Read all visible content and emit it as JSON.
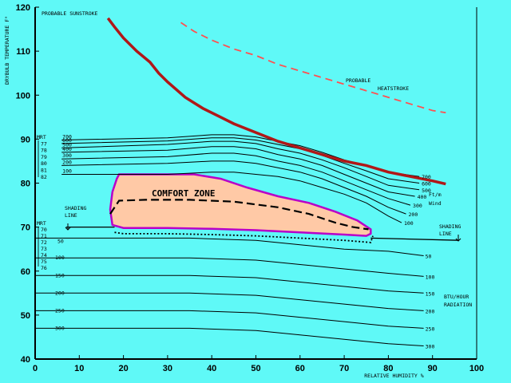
{
  "chart_data": {
    "type": "line",
    "title": "",
    "xlabel": "RELATIVE HUMIDITY %",
    "ylabel": "DRYBULB TEMPERATURE F°",
    "xlim": [
      0,
      100
    ],
    "ylim": [
      40,
      120
    ],
    "x_ticks": [
      0,
      10,
      20,
      30,
      40,
      50,
      60,
      70,
      80,
      90,
      100
    ],
    "y_ticks": [
      40,
      50,
      60,
      70,
      80,
      90,
      100,
      110,
      120
    ],
    "colors": {
      "background": "#5ff9f7",
      "sunstroke": "#b01818",
      "heatstroke": "#ff5050",
      "comfort_fill": "#ffc9a6",
      "comfort_edge": "#b800c8"
    },
    "series": [
      {
        "name": "PROBABLE SUNSTROKE",
        "style": "solid-red",
        "points": [
          [
            16.5,
            117.5
          ],
          [
            18,
            115.5
          ],
          [
            20,
            113
          ],
          [
            23,
            110
          ],
          [
            26,
            107.5
          ],
          [
            28,
            105
          ],
          [
            30,
            103
          ],
          [
            34,
            99.5
          ],
          [
            38,
            97
          ],
          [
            42,
            95
          ],
          [
            45,
            93.5
          ],
          [
            50,
            91.5
          ],
          [
            55,
            89.5
          ],
          [
            60,
            88
          ],
          [
            65,
            86.5
          ],
          [
            70,
            85
          ],
          [
            75,
            84
          ],
          [
            80,
            82.5
          ],
          [
            85,
            81.5
          ],
          [
            90,
            80.5
          ],
          [
            93,
            79.8
          ]
        ]
      },
      {
        "name": "PROBABLE HEATSTROKE",
        "style": "dashed-red",
        "points": [
          [
            33,
            116.5
          ],
          [
            36,
            114.5
          ],
          [
            40,
            112.5
          ],
          [
            45,
            110.5
          ],
          [
            50,
            109
          ],
          [
            55,
            107
          ],
          [
            60,
            105.5
          ],
          [
            65,
            104
          ],
          [
            70,
            102.5
          ],
          [
            75,
            101
          ],
          [
            80,
            99.5
          ],
          [
            85,
            98
          ],
          [
            90,
            96.5
          ],
          [
            93,
            96
          ]
        ]
      }
    ],
    "wind_curves": [
      {
        "label": "100",
        "points": [
          [
            6,
            82
          ],
          [
            30,
            82
          ],
          [
            40,
            82.5
          ],
          [
            45,
            82.5
          ],
          [
            50,
            82
          ],
          [
            55,
            81.5
          ],
          [
            60,
            80.5
          ],
          [
            65,
            79
          ],
          [
            70,
            77.5
          ],
          [
            75,
            75.5
          ],
          [
            80,
            72.5
          ],
          [
            83,
            71
          ]
        ]
      },
      {
        "label": "200",
        "points": [
          [
            6,
            84
          ],
          [
            30,
            84.5
          ],
          [
            40,
            85
          ],
          [
            45,
            85
          ],
          [
            50,
            84.5
          ],
          [
            55,
            83.5
          ],
          [
            60,
            82.5
          ],
          [
            65,
            81
          ],
          [
            70,
            79
          ],
          [
            75,
            77
          ],
          [
            80,
            74.5
          ],
          [
            84,
            73
          ]
        ]
      },
      {
        "label": "300",
        "points": [
          [
            6,
            85.5
          ],
          [
            30,
            86
          ],
          [
            40,
            86.8
          ],
          [
            45,
            86.8
          ],
          [
            50,
            86.2
          ],
          [
            55,
            85
          ],
          [
            60,
            84
          ],
          [
            65,
            82.5
          ],
          [
            70,
            80.5
          ],
          [
            75,
            78.5
          ],
          [
            80,
            76.5
          ],
          [
            85,
            75
          ]
        ]
      },
      {
        "label": "400",
        "points": [
          [
            6,
            87
          ],
          [
            30,
            87.5
          ],
          [
            40,
            88.3
          ],
          [
            45,
            88.3
          ],
          [
            50,
            87.8
          ],
          [
            55,
            86.5
          ],
          [
            60,
            85.5
          ],
          [
            65,
            84
          ],
          [
            70,
            82
          ],
          [
            75,
            80
          ],
          [
            80,
            78
          ],
          [
            86,
            77
          ]
        ]
      },
      {
        "label": "500",
        "points": [
          [
            6,
            88
          ],
          [
            30,
            88.8
          ],
          [
            40,
            89.5
          ],
          [
            45,
            89.5
          ],
          [
            50,
            89
          ],
          [
            55,
            87.8
          ],
          [
            60,
            86.8
          ],
          [
            65,
            85.3
          ],
          [
            70,
            83.5
          ],
          [
            75,
            81.5
          ],
          [
            80,
            79.5
          ],
          [
            87,
            78.5
          ]
        ]
      },
      {
        "label": "600",
        "points": [
          [
            6,
            89
          ],
          [
            30,
            89.6
          ],
          [
            40,
            90.3
          ],
          [
            45,
            90.3
          ],
          [
            50,
            89.8
          ],
          [
            55,
            88.8
          ],
          [
            60,
            87.8
          ],
          [
            65,
            86.3
          ],
          [
            70,
            84.5
          ],
          [
            75,
            82.8
          ],
          [
            80,
            81
          ],
          [
            87,
            80
          ]
        ]
      },
      {
        "label": "700",
        "points": [
          [
            6,
            89.8
          ],
          [
            30,
            90.3
          ],
          [
            40,
            91
          ],
          [
            45,
            91
          ],
          [
            50,
            90.5
          ],
          [
            55,
            89.5
          ],
          [
            60,
            88.5
          ],
          [
            65,
            87
          ],
          [
            70,
            85.3
          ],
          [
            75,
            84
          ],
          [
            80,
            82.5
          ],
          [
            87,
            81.5
          ]
        ]
      }
    ],
    "wind_bracket_labels": [
      "MRT",
      "77",
      "78",
      "79",
      "80",
      "81",
      "82"
    ],
    "wind_units": "Ft/m",
    "wind_label": "Wind",
    "radiation_curves": [
      {
        "label": "50",
        "points": [
          [
            0,
            67.5
          ],
          [
            35,
            67.5
          ],
          [
            50,
            67
          ],
          [
            60,
            66
          ],
          [
            70,
            65
          ],
          [
            80,
            64.5
          ],
          [
            88,
            63.5
          ]
        ]
      },
      {
        "label": "100",
        "points": [
          [
            0,
            63
          ],
          [
            35,
            63
          ],
          [
            50,
            62.5
          ],
          [
            60,
            61.5
          ],
          [
            70,
            60.5
          ],
          [
            80,
            59.5
          ],
          [
            88,
            58.8
          ]
        ]
      },
      {
        "label": "150",
        "points": [
          [
            0,
            59
          ],
          [
            35,
            59
          ],
          [
            50,
            58.5
          ],
          [
            60,
            57.5
          ],
          [
            70,
            56.5
          ],
          [
            80,
            55.5
          ],
          [
            88,
            55
          ]
        ]
      },
      {
        "label": "200",
        "points": [
          [
            0,
            55
          ],
          [
            35,
            55
          ],
          [
            50,
            54.5
          ],
          [
            60,
            53.5
          ],
          [
            70,
            52.5
          ],
          [
            80,
            51.5
          ],
          [
            88,
            51
          ]
        ]
      },
      {
        "label": "250",
        "points": [
          [
            0,
            51
          ],
          [
            35,
            51
          ],
          [
            50,
            50.5
          ],
          [
            60,
            49.5
          ],
          [
            70,
            48.5
          ],
          [
            80,
            47.5
          ],
          [
            88,
            47
          ]
        ]
      },
      {
        "label": "300",
        "points": [
          [
            0,
            47
          ],
          [
            35,
            47
          ],
          [
            50,
            46.5
          ],
          [
            60,
            45.5
          ],
          [
            70,
            44.5
          ],
          [
            80,
            43.5
          ],
          [
            88,
            43
          ]
        ]
      }
    ],
    "radiation_bracket_labels": [
      "MRT",
      "70",
      "71",
      "72",
      "73",
      "74",
      "75",
      "76"
    ],
    "radiation_units": "BTU/HOUR",
    "radiation_label": "RADIATION",
    "comfort_zone": {
      "label": "COMFORT ZONE",
      "outline": [
        [
          19,
          82
        ],
        [
          36,
          82
        ],
        [
          42,
          81
        ],
        [
          48,
          79
        ],
        [
          55,
          77
        ],
        [
          62,
          75.5
        ],
        [
          68,
          73.5
        ],
        [
          73,
          71.5
        ],
        [
          76,
          69.5
        ],
        [
          76,
          68.5
        ],
        [
          75,
          68
        ],
        [
          70,
          68.3
        ],
        [
          60,
          68.8
        ],
        [
          50,
          69.3
        ],
        [
          40,
          69.6
        ],
        [
          30,
          69.8
        ],
        [
          20,
          69.8
        ],
        [
          17.5,
          70.5
        ],
        [
          17,
          74
        ],
        [
          17.5,
          78
        ],
        [
          18.5,
          81
        ]
      ]
    },
    "dashed_winter": [
      [
        17,
        73
      ],
      [
        19,
        76
      ],
      [
        25,
        76.2
      ],
      [
        35,
        76.2
      ],
      [
        45,
        75.8
      ],
      [
        55,
        74.5
      ],
      [
        62,
        73
      ],
      [
        68,
        71
      ],
      [
        72,
        70
      ],
      [
        75.5,
        69.5
      ]
    ],
    "dotted_lower": [
      [
        18,
        68.8
      ],
      [
        20,
        68.5
      ],
      [
        30,
        68.5
      ],
      [
        40,
        68.3
      ],
      [
        50,
        68
      ],
      [
        60,
        67.5
      ],
      [
        70,
        67
      ],
      [
        76,
        66.5
      ],
      [
        76.5,
        68
      ]
    ],
    "shading_line": {
      "label": "SHADING LINE",
      "points": [
        [
          7,
          70
        ],
        [
          18,
          70
        ]
      ],
      "right_points": [
        [
          76,
          67.5
        ],
        [
          96,
          67
        ]
      ]
    },
    "labels": {
      "sunstroke": "PROBABLE SUNSTROKE",
      "heatstroke_1": "PROBABLE",
      "heatstroke_2": "HEATSTROKE",
      "shading_1": "SHADING",
      "shading_2": "LINE"
    }
  }
}
